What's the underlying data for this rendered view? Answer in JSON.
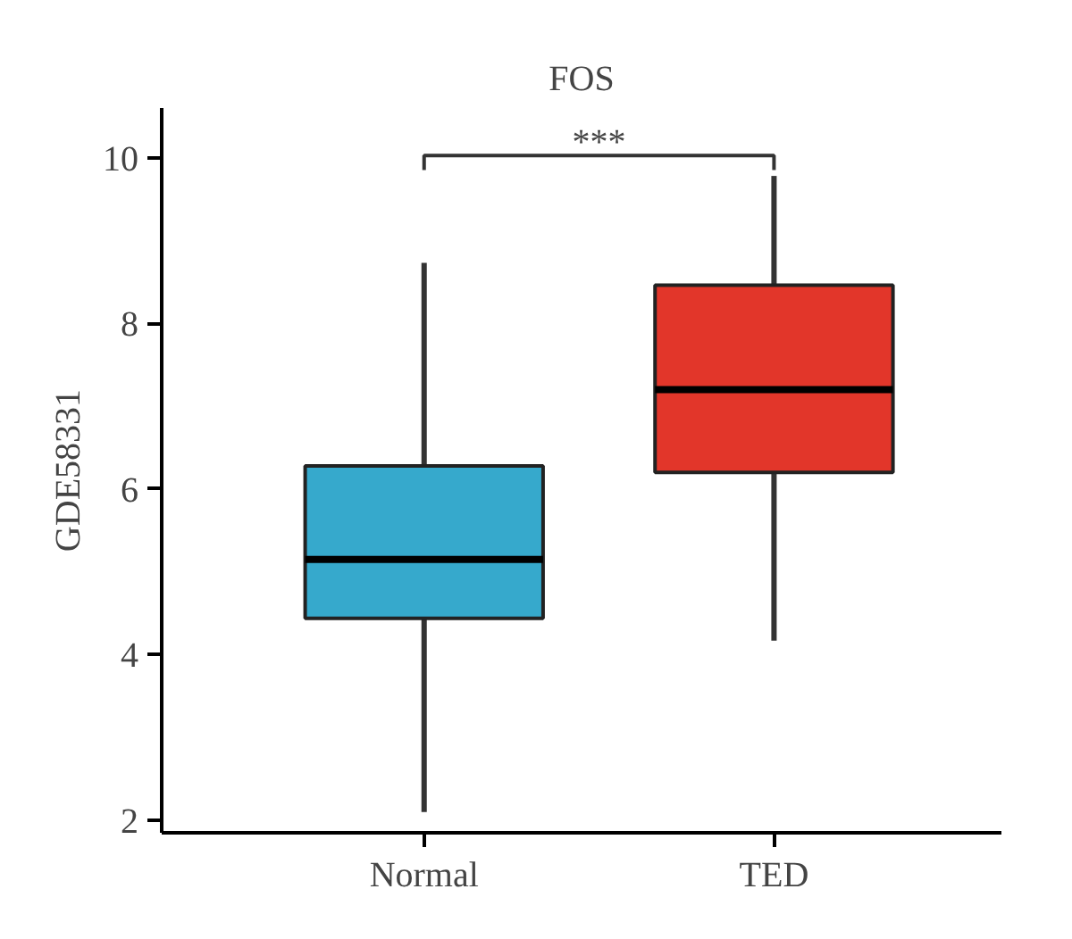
{
  "chart_data": {
    "type": "box",
    "title": "FOS",
    "ylabel": "GDE58331",
    "categories": [
      "Normal",
      "TED"
    ],
    "colors": [
      "#36a9cc",
      "#e2362a"
    ],
    "boxes": [
      {
        "low": 2.1,
        "q1": 4.44,
        "median": 5.15,
        "q3": 6.28,
        "high": 8.73
      },
      {
        "low": 4.17,
        "q1": 6.2,
        "median": 7.2,
        "q3": 8.46,
        "high": 9.78
      }
    ],
    "ylim": [
      1.85,
      10.6
    ],
    "yticks": [
      2,
      4,
      6,
      8,
      10
    ],
    "grid": false,
    "annotations": [
      "***"
    ]
  }
}
